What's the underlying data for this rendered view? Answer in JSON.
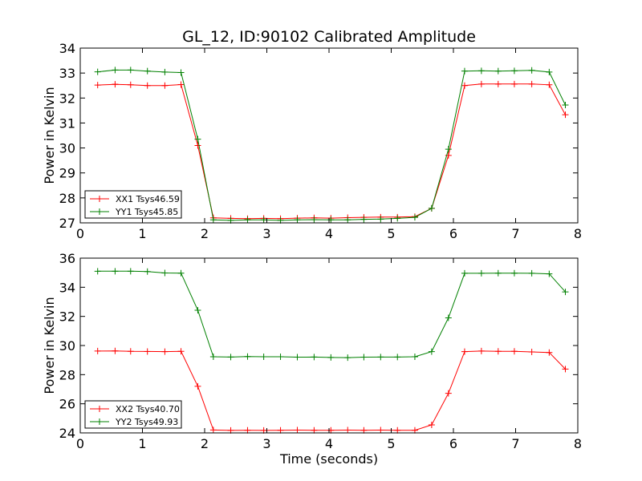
{
  "chart_data": [
    {
      "type": "line",
      "title": "GL_12, ID:90102 Calibrated Amplitude",
      "xlabel": "",
      "ylabel": "Power in Kelvin",
      "xlim": [
        0,
        8
      ],
      "ylim": [
        27,
        34
      ],
      "xticks": [
        "0",
        "1",
        "2",
        "3",
        "4",
        "5",
        "6",
        "7",
        "8"
      ],
      "yticks": [
        "27",
        "28",
        "29",
        "30",
        "31",
        "32",
        "33",
        "34"
      ],
      "legend_position": "lower-left",
      "x": [
        0.28,
        0.56,
        0.81,
        1.08,
        1.36,
        1.62,
        1.89,
        2.14,
        2.42,
        2.69,
        2.95,
        3.22,
        3.49,
        3.76,
        4.03,
        4.3,
        4.56,
        4.83,
        5.1,
        5.38,
        5.65,
        5.92,
        6.18,
        6.45,
        6.72,
        6.98,
        7.26,
        7.54,
        7.8
      ],
      "series": [
        {
          "name": "XX1 Tsys46.59",
          "color": "#ff0000",
          "values": [
            32.52,
            32.55,
            32.53,
            32.5,
            32.5,
            32.54,
            30.1,
            27.2,
            27.18,
            27.17,
            27.18,
            27.17,
            27.19,
            27.2,
            27.19,
            27.21,
            27.22,
            27.23,
            27.23,
            27.25,
            27.58,
            29.7,
            32.5,
            32.56,
            32.56,
            32.56,
            32.56,
            32.53,
            31.33
          ]
        },
        {
          "name": "YY1 Tsys45.85",
          "color": "#008000",
          "values": [
            33.05,
            33.12,
            33.12,
            33.08,
            33.04,
            33.02,
            30.35,
            27.12,
            27.1,
            27.12,
            27.12,
            27.1,
            27.12,
            27.13,
            27.12,
            27.12,
            27.14,
            27.15,
            27.18,
            27.22,
            27.58,
            29.95,
            33.08,
            33.09,
            33.08,
            33.09,
            33.11,
            33.04,
            31.72
          ]
        }
      ]
    },
    {
      "type": "line",
      "title": "",
      "xlabel": "Time (seconds)",
      "ylabel": "Power in Kelvin",
      "xlim": [
        0,
        8
      ],
      "ylim": [
        24,
        36
      ],
      "xticks": [
        "0",
        "1",
        "2",
        "3",
        "4",
        "5",
        "6",
        "7",
        "8"
      ],
      "yticks": [
        "24",
        "26",
        "28",
        "30",
        "32",
        "34",
        "36"
      ],
      "legend_position": "lower-left",
      "x": [
        0.28,
        0.56,
        0.81,
        1.08,
        1.36,
        1.62,
        1.89,
        2.14,
        2.42,
        2.69,
        2.95,
        3.22,
        3.49,
        3.76,
        4.03,
        4.3,
        4.56,
        4.83,
        5.1,
        5.38,
        5.65,
        5.92,
        6.18,
        6.45,
        6.72,
        6.98,
        7.26,
        7.54,
        7.8
      ],
      "series": [
        {
          "name": "XX2 Tsys40.70",
          "color": "#ff0000",
          "values": [
            29.62,
            29.63,
            29.6,
            29.59,
            29.58,
            29.6,
            27.2,
            24.2,
            24.17,
            24.18,
            24.17,
            24.18,
            24.19,
            24.18,
            24.18,
            24.19,
            24.18,
            24.19,
            24.18,
            24.18,
            24.55,
            26.72,
            29.58,
            29.62,
            29.6,
            29.6,
            29.56,
            29.52,
            28.38
          ]
        },
        {
          "name": "YY2 Tsys49.93",
          "color": "#008000",
          "values": [
            35.1,
            35.1,
            35.1,
            35.08,
            34.98,
            34.97,
            32.42,
            29.23,
            29.21,
            29.24,
            29.23,
            29.23,
            29.2,
            29.21,
            29.18,
            29.17,
            29.2,
            29.21,
            29.21,
            29.23,
            29.58,
            31.9,
            34.96,
            34.96,
            34.97,
            34.97,
            34.96,
            34.92,
            33.68
          ]
        }
      ]
    }
  ]
}
